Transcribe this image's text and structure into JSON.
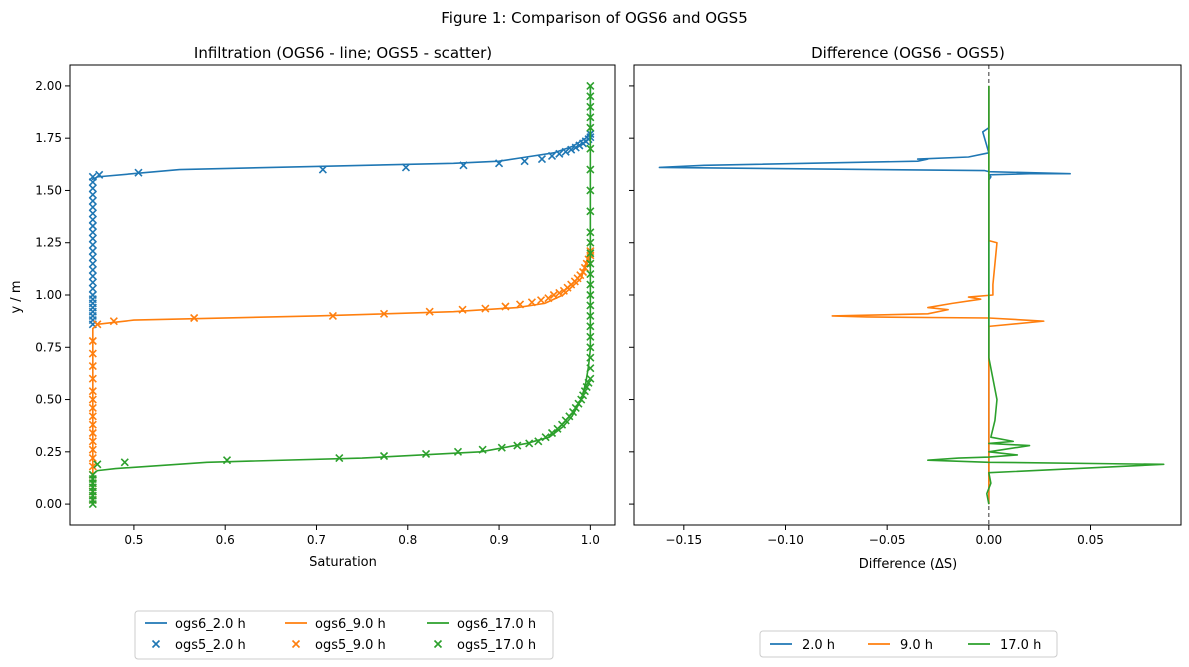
{
  "figure_title": "Figure 1: Comparison of OGS6 and OGS5",
  "colors": {
    "blue": "#1f77b4",
    "orange": "#ff7f0e",
    "green": "#2ca02c",
    "zero_line": "#333333"
  },
  "chart_data": [
    {
      "type": "line+scatter",
      "title": "Infiltration (OGS6 - line; OGS5 - scatter)",
      "xlabel": "Saturation",
      "ylabel": "y / m",
      "xlim": [
        0.43,
        1.027
      ],
      "ylim": [
        -0.1,
        2.1
      ],
      "xticks": [
        0.5,
        0.6,
        0.7,
        0.8,
        0.9,
        1.0
      ],
      "xtick_labels": [
        "0.5",
        "0.6",
        "0.7",
        "0.8",
        "0.9",
        "1.0"
      ],
      "yticks": [
        0.0,
        0.25,
        0.5,
        0.75,
        1.0,
        1.25,
        1.5,
        1.75,
        2.0
      ],
      "ytick_labels": [
        "0.00",
        "0.25",
        "0.50",
        "0.75",
        "1.00",
        "1.25",
        "1.50",
        "1.75",
        "2.00"
      ],
      "series": [
        {
          "name": "ogs6_2.0 h",
          "kind": "line",
          "color": "#1f77b4",
          "x": [
            0.455,
            0.455,
            0.458,
            0.46,
            0.55,
            0.7,
            0.85,
            0.9,
            0.93,
            0.96,
            0.98,
            0.995,
            1.0,
            1.0
          ],
          "y": [
            1.55,
            1.555,
            1.56,
            1.565,
            1.6,
            1.615,
            1.63,
            1.64,
            1.66,
            1.68,
            1.71,
            1.75,
            1.78,
            2.0
          ]
        },
        {
          "name": "ogs5_2.0 h",
          "kind": "scatter",
          "color": "#1f77b4",
          "x": [
            0.455,
            0.455,
            0.455,
            0.455,
            0.455,
            0.455,
            0.455,
            0.455,
            0.455,
            0.455,
            0.455,
            0.455,
            0.455,
            0.455,
            0.455,
            0.455,
            0.455,
            0.455,
            0.455,
            0.455,
            0.455,
            0.455,
            0.455,
            0.455,
            0.455,
            0.455,
            0.455,
            0.462,
            0.505,
            0.707,
            0.798,
            0.861,
            0.9,
            0.928,
            0.947,
            0.958,
            0.966,
            0.973,
            0.979,
            0.984,
            0.988,
            0.992,
            0.995,
            0.998,
            1.0,
            1.0
          ],
          "y": [
            0.86,
            0.88,
            0.9,
            0.92,
            0.94,
            0.96,
            0.98,
            1.0,
            1.03,
            1.06,
            1.09,
            1.12,
            1.15,
            1.18,
            1.21,
            1.24,
            1.27,
            1.3,
            1.33,
            1.36,
            1.39,
            1.42,
            1.45,
            1.48,
            1.51,
            1.54,
            1.565,
            1.575,
            1.585,
            1.6,
            1.61,
            1.62,
            1.63,
            1.64,
            1.65,
            1.665,
            1.675,
            1.685,
            1.695,
            1.705,
            1.715,
            1.725,
            1.735,
            1.745,
            1.755,
            1.77
          ]
        },
        {
          "name": "ogs6_9.0 h",
          "kind": "line",
          "color": "#ff7f0e",
          "x": [
            0.455,
            0.455,
            0.458,
            0.46,
            0.48,
            0.5,
            0.7,
            0.85,
            0.92,
            0.95,
            0.97,
            0.98,
            0.99,
            0.995,
            1.0,
            1.0
          ],
          "y": [
            0.0,
            0.84,
            0.85,
            0.86,
            0.87,
            0.88,
            0.9,
            0.92,
            0.94,
            0.96,
            1.0,
            1.04,
            1.08,
            1.15,
            1.22,
            1.25
          ]
        },
        {
          "name": "ogs5_9.0 h",
          "kind": "scatter",
          "color": "#ff7f0e",
          "x": [
            0.455,
            0.455,
            0.455,
            0.455,
            0.455,
            0.455,
            0.455,
            0.455,
            0.455,
            0.455,
            0.455,
            0.455,
            0.455,
            0.455,
            0.455,
            0.455,
            0.455,
            0.455,
            0.46,
            0.478,
            0.566,
            0.718,
            0.774,
            0.824,
            0.86,
            0.885,
            0.907,
            0.923,
            0.936,
            0.946,
            0.954,
            0.96,
            0.966,
            0.971,
            0.975,
            0.979,
            0.983,
            0.986,
            0.989,
            0.992,
            0.994,
            0.996,
            0.998,
            1.0,
            1.0
          ],
          "y": [
            0.02,
            0.06,
            0.1,
            0.14,
            0.18,
            0.22,
            0.26,
            0.3,
            0.34,
            0.38,
            0.42,
            0.46,
            0.5,
            0.54,
            0.6,
            0.66,
            0.72,
            0.78,
            0.86,
            0.875,
            0.89,
            0.9,
            0.91,
            0.92,
            0.93,
            0.935,
            0.945,
            0.955,
            0.965,
            0.975,
            0.985,
            1.0,
            1.01,
            1.02,
            1.035,
            1.05,
            1.065,
            1.08,
            1.095,
            1.11,
            1.13,
            1.15,
            1.17,
            1.19,
            1.21
          ]
        },
        {
          "name": "ogs6_17.0 h",
          "kind": "line",
          "color": "#2ca02c",
          "x": [
            0.455,
            0.455,
            0.457,
            0.46,
            0.48,
            0.58,
            0.75,
            0.88,
            0.93,
            0.955,
            0.97,
            0.98,
            0.99,
            0.995,
            0.998,
            1.0,
            1.0
          ],
          "y": [
            0.0,
            0.14,
            0.15,
            0.16,
            0.17,
            0.2,
            0.22,
            0.25,
            0.29,
            0.32,
            0.37,
            0.42,
            0.5,
            0.58,
            0.66,
            0.74,
            2.0
          ]
        },
        {
          "name": "ogs5_17.0 h",
          "kind": "scatter",
          "color": "#2ca02c",
          "x": [
            0.455,
            0.455,
            0.455,
            0.455,
            0.455,
            0.455,
            0.455,
            0.455,
            0.46,
            0.49,
            0.602,
            0.725,
            0.774,
            0.82,
            0.855,
            0.882,
            0.903,
            0.92,
            0.933,
            0.943,
            0.951,
            0.958,
            0.964,
            0.969,
            0.973,
            0.977,
            0.981,
            0.984,
            0.987,
            0.99,
            0.992,
            0.994,
            0.996,
            0.998,
            1.0,
            1.0,
            1.0,
            1.0,
            1.0,
            1.0,
            1.0,
            1.0,
            1.0,
            1.0,
            1.0,
            1.0,
            1.0,
            1.0,
            1.0,
            1.0,
            1.0,
            1.0,
            1.0,
            1.0,
            1.0,
            1.0,
            1.0,
            1.0
          ],
          "y": [
            0.0,
            0.02,
            0.04,
            0.06,
            0.08,
            0.1,
            0.12,
            0.14,
            0.19,
            0.2,
            0.21,
            0.22,
            0.23,
            0.24,
            0.25,
            0.26,
            0.27,
            0.28,
            0.29,
            0.3,
            0.32,
            0.34,
            0.36,
            0.38,
            0.4,
            0.42,
            0.44,
            0.46,
            0.48,
            0.5,
            0.52,
            0.54,
            0.56,
            0.58,
            0.6,
            0.65,
            0.7,
            0.75,
            0.8,
            0.85,
            0.9,
            0.95,
            1.0,
            1.05,
            1.1,
            1.15,
            1.2,
            1.25,
            1.3,
            1.4,
            1.5,
            1.6,
            1.7,
            1.8,
            1.85,
            1.9,
            1.95,
            2.0
          ]
        }
      ],
      "legend": {
        "placement": "below",
        "columns": 3,
        "entries": [
          {
            "label": "ogs6_2.0 h",
            "kind": "line",
            "color": "#1f77b4"
          },
          {
            "label": "ogs6_9.0 h",
            "kind": "line",
            "color": "#ff7f0e"
          },
          {
            "label": "ogs6_17.0 h",
            "kind": "line",
            "color": "#2ca02c"
          },
          {
            "label": "ogs5_2.0 h",
            "kind": "scatter",
            "color": "#1f77b4"
          },
          {
            "label": "ogs5_9.0 h",
            "kind": "scatter",
            "color": "#ff7f0e"
          },
          {
            "label": "ogs5_17.0 h",
            "kind": "scatter",
            "color": "#2ca02c"
          }
        ]
      }
    },
    {
      "type": "line",
      "title": "Difference (OGS6 - OGS5)",
      "xlabel": "Difference (ΔS)",
      "ylabel": "",
      "xlim": [
        -0.1745,
        0.0945
      ],
      "ylim": [
        -0.1,
        2.1
      ],
      "xticks": [
        -0.15,
        -0.1,
        -0.05,
        0.0,
        0.05
      ],
      "xtick_labels": [
        "−0.15",
        "−0.10",
        "−0.05",
        "0.00",
        "0.05"
      ],
      "yticks": [
        0.0,
        0.25,
        0.5,
        0.75,
        1.0,
        1.25,
        1.5,
        1.75,
        2.0
      ],
      "zero_line": {
        "x": 0.0,
        "style": "dashed"
      },
      "series": [
        {
          "name": "2.0 h",
          "color": "#1f77b4",
          "x": [
            0.0,
            0.0,
            0.001,
            0.0,
            0.02,
            0.04,
            0.0,
            -0.002,
            -0.162,
            -0.14,
            -0.035,
            -0.03,
            -0.035,
            -0.01,
            0.0,
            -0.003,
            0.0,
            0.0
          ],
          "y": [
            0.0,
            1.55,
            1.565,
            1.575,
            1.58,
            1.58,
            1.59,
            1.595,
            1.61,
            1.62,
            1.64,
            1.65,
            1.65,
            1.66,
            1.68,
            1.78,
            1.8,
            2.0
          ]
        },
        {
          "name": "9.0 h",
          "color": "#ff7f0e",
          "x": [
            0.0,
            0.0,
            0.0,
            0.027,
            0.0,
            -0.06,
            -0.077,
            -0.03,
            -0.02,
            -0.03,
            -0.018,
            -0.004,
            -0.01,
            0.002,
            0.002,
            0.004,
            0.0,
            0.0,
            0.0
          ],
          "y": [
            0.0,
            0.76,
            0.85,
            0.875,
            0.89,
            0.895,
            0.9,
            0.91,
            0.93,
            0.94,
            0.96,
            0.98,
            0.99,
            1.0,
            1.05,
            1.25,
            1.26,
            1.3,
            2.0
          ]
        },
        {
          "name": "17.0 h",
          "color": "#2ca02c",
          "x": [
            0.0,
            -0.001,
            0.001,
            0.0,
            0.086,
            0.0,
            -0.03,
            -0.015,
            0.0,
            0.014,
            0.0,
            0.02,
            0.0,
            0.012,
            0.001,
            0.003,
            0.004,
            0.002,
            0.0,
            0.0,
            0.0
          ],
          "y": [
            0.0,
            0.05,
            0.1,
            0.15,
            0.19,
            0.2,
            0.21,
            0.22,
            0.225,
            0.235,
            0.25,
            0.28,
            0.29,
            0.3,
            0.32,
            0.4,
            0.5,
            0.6,
            0.7,
            0.8,
            2.0
          ]
        }
      ],
      "legend": {
        "placement": "below",
        "columns": 3,
        "entries": [
          {
            "label": "2.0 h",
            "kind": "line",
            "color": "#1f77b4"
          },
          {
            "label": "9.0 h",
            "kind": "line",
            "color": "#ff7f0e"
          },
          {
            "label": "17.0 h",
            "kind": "line",
            "color": "#2ca02c"
          }
        ]
      }
    }
  ]
}
